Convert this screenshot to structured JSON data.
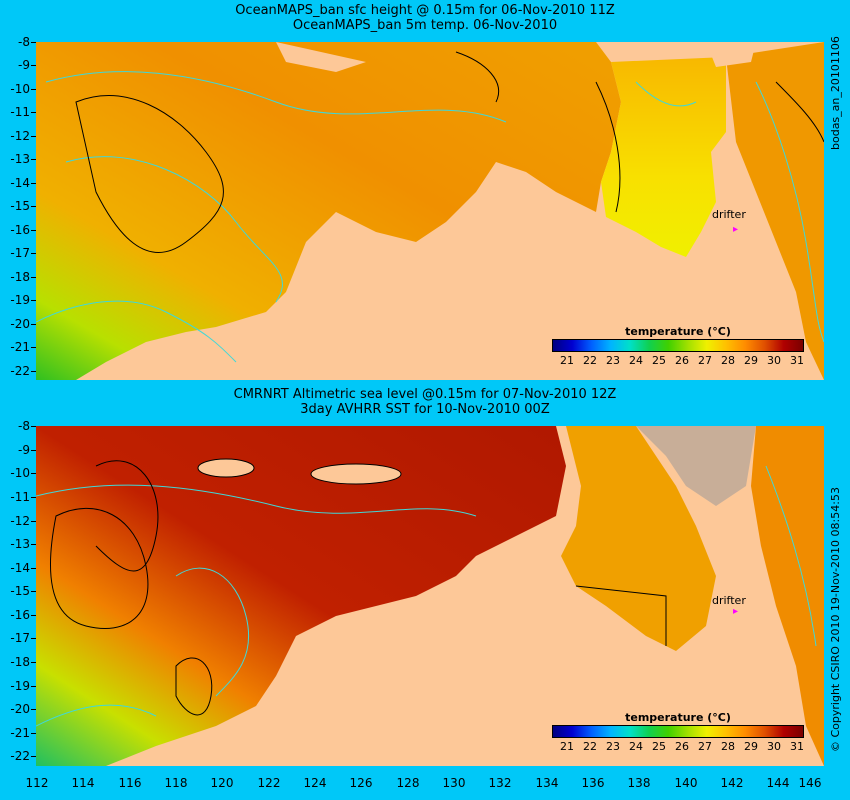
{
  "top": {
    "title_line1": "OceanMAPS_ban sfc height @ 0.15m for 06-Nov-2010 11Z",
    "title_line2": "OceanMAPS_ban 5m temp. 06-Nov-2010",
    "side_label": "bodas_an_20101106",
    "drifter_label": "drifter"
  },
  "bottom": {
    "title_line1": "CMRNRT Altimetric sea level  @0.15m  for 07-Nov-2010 12Z",
    "title_line2": "3day AVHRR SST for 10-Nov-2010 00Z",
    "side_label": "© Copyright CSIRO 2010   19-Nov-2010 08:54:53",
    "drifter_label": "drifter"
  },
  "colorbar": {
    "title": "temperature (°C)",
    "labels": [
      "21",
      "22",
      "23",
      "24",
      "25",
      "26",
      "27",
      "28",
      "29",
      "30",
      "31"
    ]
  },
  "y_axis_labels": [
    "-8",
    "-9",
    "-10",
    "-11",
    "-12",
    "-13",
    "-14",
    "-15",
    "-16",
    "-17",
    "-18",
    "-19",
    "-20",
    "-21",
    "-22"
  ],
  "x_axis_labels": [
    "112",
    "114",
    "116",
    "118",
    "120",
    "122",
    "124",
    "126",
    "128",
    "130",
    "132",
    "134",
    "136",
    "138",
    "140",
    "142",
    "144",
    "146"
  ],
  "colors": {
    "background": "#00c8f8",
    "land": "#fdc898",
    "contour_cyan": "#40d8d8",
    "drifter": "#ff00ff"
  }
}
